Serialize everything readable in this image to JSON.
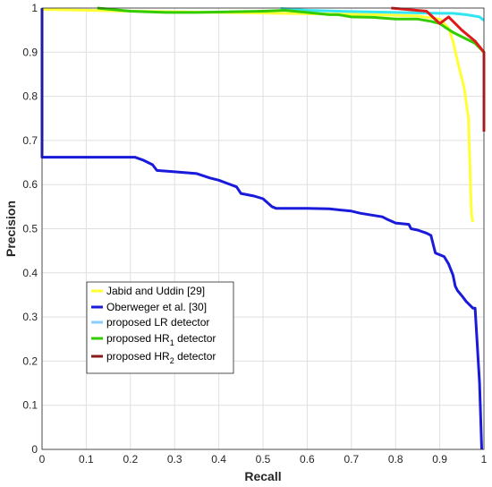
{
  "chart_data": {
    "type": "line",
    "xlabel": "Recall",
    "ylabel": "Precision",
    "xlim": [
      0,
      1
    ],
    "ylim": [
      0,
      1
    ],
    "xticks": [
      "0",
      "0.1",
      "0.2",
      "0.3",
      "0.4",
      "0.5",
      "0.6",
      "0.7",
      "0.8",
      "0.9",
      "1"
    ],
    "yticks": [
      "0",
      "0.1",
      "0.2",
      "0.3",
      "0.4",
      "0.5",
      "0.6",
      "0.7",
      "0.8",
      "0.9",
      "1"
    ],
    "grid": true,
    "legend_position": "bottom-left",
    "series": [
      {
        "name": "Jabid and Uddin [29]",
        "color": "#ffff33",
        "points": [
          [
            0.0,
            0.997
          ],
          [
            0.2,
            0.993
          ],
          [
            0.4,
            0.99
          ],
          [
            0.6,
            0.987
          ],
          [
            0.75,
            0.985
          ],
          [
            0.85,
            0.982
          ],
          [
            0.9,
            0.975
          ],
          [
            0.92,
            0.955
          ],
          [
            0.93,
            0.925
          ],
          [
            0.94,
            0.88
          ],
          [
            0.955,
            0.82
          ],
          [
            0.965,
            0.75
          ],
          [
            0.968,
            0.65
          ],
          [
            0.97,
            0.58
          ],
          [
            0.972,
            0.53
          ],
          [
            0.975,
            0.515
          ]
        ]
      },
      {
        "name": "Oberweger et al. [30]",
        "labels": [
          "Oberweger et al. [30]"
        ],
        "color": "#1a1adb",
        "points": [
          [
            0.0,
            1.0
          ],
          [
            0.0,
            0.662
          ],
          [
            0.1,
            0.662
          ],
          [
            0.21,
            0.662
          ],
          [
            0.23,
            0.655
          ],
          [
            0.25,
            0.645
          ],
          [
            0.26,
            0.632
          ],
          [
            0.3,
            0.629
          ],
          [
            0.35,
            0.625
          ],
          [
            0.38,
            0.615
          ],
          [
            0.4,
            0.61
          ],
          [
            0.44,
            0.595
          ],
          [
            0.45,
            0.58
          ],
          [
            0.48,
            0.574
          ],
          [
            0.5,
            0.568
          ],
          [
            0.52,
            0.55
          ],
          [
            0.53,
            0.546
          ],
          [
            0.6,
            0.546
          ],
          [
            0.65,
            0.545
          ],
          [
            0.7,
            0.54
          ],
          [
            0.72,
            0.535
          ],
          [
            0.77,
            0.527
          ],
          [
            0.78,
            0.522
          ],
          [
            0.8,
            0.513
          ],
          [
            0.83,
            0.51
          ],
          [
            0.835,
            0.5
          ],
          [
            0.85,
            0.497
          ],
          [
            0.87,
            0.49
          ],
          [
            0.88,
            0.485
          ],
          [
            0.89,
            0.445
          ],
          [
            0.91,
            0.437
          ],
          [
            0.92,
            0.42
          ],
          [
            0.93,
            0.395
          ],
          [
            0.935,
            0.37
          ],
          [
            0.94,
            0.36
          ],
          [
            0.95,
            0.348
          ],
          [
            0.96,
            0.335
          ],
          [
            0.975,
            0.32
          ],
          [
            0.98,
            0.32
          ],
          [
            0.99,
            0.15
          ],
          [
            0.995,
            0.0
          ]
        ]
      },
      {
        "name": "proposed LR detector",
        "color": "#33e5f0",
        "points": [
          [
            0.54,
            0.999
          ],
          [
            0.6,
            0.995
          ],
          [
            0.7,
            0.992
          ],
          [
            0.8,
            0.99
          ],
          [
            0.9,
            0.988
          ],
          [
            0.93,
            0.988
          ],
          [
            0.96,
            0.985
          ],
          [
            0.99,
            0.98
          ],
          [
            1.0,
            0.972
          ]
        ]
      },
      {
        "name": "proposed HR1 detector",
        "color": "#33cc00",
        "points": [
          [
            0.125,
            1.0
          ],
          [
            0.2,
            0.993
          ],
          [
            0.28,
            0.99
          ],
          [
            0.35,
            0.99
          ],
          [
            0.5,
            0.993
          ],
          [
            0.55,
            0.995
          ],
          [
            0.6,
            0.99
          ],
          [
            0.65,
            0.985
          ],
          [
            0.67,
            0.985
          ],
          [
            0.7,
            0.98
          ],
          [
            0.75,
            0.979
          ],
          [
            0.8,
            0.975
          ],
          [
            0.85,
            0.975
          ],
          [
            0.88,
            0.97
          ],
          [
            0.9,
            0.965
          ],
          [
            0.91,
            0.958
          ],
          [
            0.93,
            0.945
          ],
          [
            0.96,
            0.93
          ],
          [
            0.98,
            0.92
          ],
          [
            1.0,
            0.9
          ]
        ]
      },
      {
        "name": "proposed HR2 detector",
        "color": "#e01a1a",
        "points": [
          [
            0.79,
            1.0
          ],
          [
            0.87,
            0.993
          ],
          [
            0.9,
            0.965
          ],
          [
            0.92,
            0.98
          ],
          [
            0.95,
            0.95
          ],
          [
            0.98,
            0.925
          ],
          [
            1.0,
            0.9
          ],
          [
            1.0,
            0.72
          ]
        ]
      }
    ],
    "legend": [
      {
        "label": "Jabid and Uddin [29]",
        "sub": "",
        "suffix": "",
        "color": "#ffff33"
      },
      {
        "label": "Oberweger et al. [30]",
        "sub": "",
        "suffix": "",
        "color": "#1a1adb"
      },
      {
        "label": "proposed LR detector",
        "sub": "",
        "suffix": "",
        "color": "#87cefa"
      },
      {
        "label": "proposed HR",
        "sub": "1",
        "suffix": " detector",
        "color": "#33cc00"
      },
      {
        "label": "proposed HR",
        "sub": "2",
        "suffix": " detector",
        "color": "#8b1a1a"
      }
    ]
  }
}
